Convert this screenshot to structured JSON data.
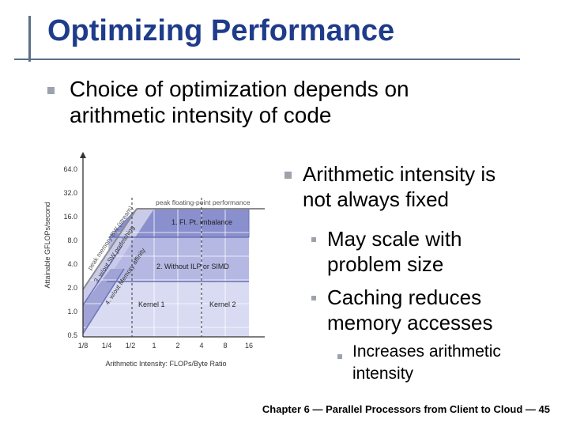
{
  "title": "Optimizing Performance",
  "bullets": {
    "b1_line1": "Choice of optimization depends on",
    "b1_line2": "arithmetic intensity of code",
    "b2_line1": "Arithmetic intensity is",
    "b2_line2": "not always fixed",
    "b2a_line1": "May scale with",
    "b2a_line2": "problem size",
    "b2b_line1": "Caching reduces",
    "b2b_line2": "memory accesses",
    "b2b1_line1": "Increases arithmetic",
    "b2b1_line2": "intensity"
  },
  "footer": "Chapter 6 — Parallel Processors from Client to Cloud — 45",
  "figure": {
    "ylabel": "Attainable GFLOPs/second",
    "xlabel": "Arithmetic Intensity: FLOPs/Byte Ratio",
    "yticks": [
      "64.0",
      "32.0",
      "16.0",
      "8.0",
      "4.0",
      "2.0",
      "1.0",
      "0.5"
    ],
    "xticks": [
      "1/8",
      "1/4",
      "1/2",
      "1",
      "2",
      "4",
      "8",
      "16"
    ],
    "labels": {
      "peak_fp": "peak floating-point performance",
      "ceiling1": "1. Fl. Pt. imbalance",
      "ceiling2": "2. Without ILP or SIMD",
      "peak_bw": "peak memory BW (stream)",
      "sw_prefetch": "3. w/out SW prefetching",
      "mem_affinity": "4. w/out Memory affinity",
      "kernel1": "Kernel 1",
      "kernel2": "Kernel 2"
    },
    "colors": {
      "region_top": "#8a8fce",
      "region_mid": "#b4b8e2",
      "region_low": "#d8dbf2",
      "roof_line": "#8c8c8c"
    }
  }
}
